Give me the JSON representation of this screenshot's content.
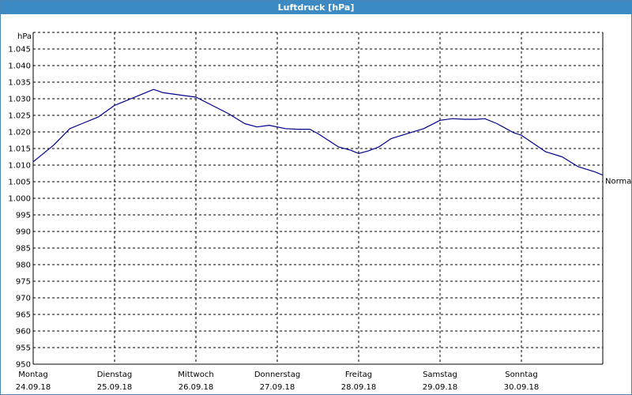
{
  "window": {
    "title": "Luftdruck [hPa]"
  },
  "chart_data": {
    "type": "line",
    "title": "Luftdruck [hPa]",
    "ylabel": "hPa",
    "xlabel": "",
    "ylim": [
      950,
      1050
    ],
    "xlim": [
      0,
      7
    ],
    "grid": true,
    "y_ticks": [
      {
        "v": 950,
        "label": "950"
      },
      {
        "v": 955,
        "label": "955"
      },
      {
        "v": 960,
        "label": "960"
      },
      {
        "v": 965,
        "label": "965"
      },
      {
        "v": 970,
        "label": "970"
      },
      {
        "v": 975,
        "label": "975"
      },
      {
        "v": 980,
        "label": "980"
      },
      {
        "v": 985,
        "label": "985"
      },
      {
        "v": 990,
        "label": "990"
      },
      {
        "v": 995,
        "label": "995"
      },
      {
        "v": 1000,
        "label": "1.000"
      },
      {
        "v": 1005,
        "label": "1.005"
      },
      {
        "v": 1010,
        "label": "1.010"
      },
      {
        "v": 1015,
        "label": "1.015"
      },
      {
        "v": 1020,
        "label": "1.020"
      },
      {
        "v": 1025,
        "label": "1.025"
      },
      {
        "v": 1030,
        "label": "1.030"
      },
      {
        "v": 1035,
        "label": "1.035"
      },
      {
        "v": 1040,
        "label": "1.040"
      },
      {
        "v": 1045,
        "label": "1.045"
      }
    ],
    "x_ticks": [
      {
        "day": "Montag",
        "date": "24.09.18"
      },
      {
        "day": "Dienstag",
        "date": "25.09.18"
      },
      {
        "day": "Mittwoch",
        "date": "26.09.18"
      },
      {
        "day": "Donnerstag",
        "date": "27.09.18"
      },
      {
        "day": "Freitag",
        "date": "28.09.18"
      },
      {
        "day": "Samstag",
        "date": "29.09.18"
      },
      {
        "day": "Sonntag",
        "date": "30.09.18"
      }
    ],
    "series": [
      {
        "name": "Normal",
        "color": "#00008b",
        "x": [
          0.0,
          0.25,
          0.45,
          0.6,
          0.8,
          1.0,
          1.2,
          1.35,
          1.48,
          1.6,
          1.75,
          1.9,
          2.0,
          2.2,
          2.4,
          2.6,
          2.75,
          2.9,
          3.1,
          3.25,
          3.4,
          3.5,
          3.75,
          3.9,
          4.0,
          4.12,
          4.25,
          4.4,
          4.6,
          4.8,
          5.0,
          5.15,
          5.3,
          5.45,
          5.55,
          5.7,
          5.9,
          6.0,
          6.15,
          6.3,
          6.5,
          6.7,
          6.9,
          7.0
        ],
        "y": [
          1011,
          1016,
          1021,
          1022.5,
          1024.5,
          1028,
          1030,
          1031.5,
          1032.8,
          1031.8,
          1031.3,
          1030.8,
          1030.5,
          1028,
          1025.5,
          1022.5,
          1021.5,
          1022,
          1021,
          1020.8,
          1020.8,
          1019.5,
          1015.5,
          1014.5,
          1013.5,
          1014.3,
          1015.5,
          1018,
          1019.5,
          1021,
          1023.5,
          1024,
          1023.8,
          1023.8,
          1024,
          1022.5,
          1019.8,
          1019,
          1016.5,
          1014,
          1012.5,
          1009.5,
          1008,
          1007
        ]
      }
    ]
  }
}
